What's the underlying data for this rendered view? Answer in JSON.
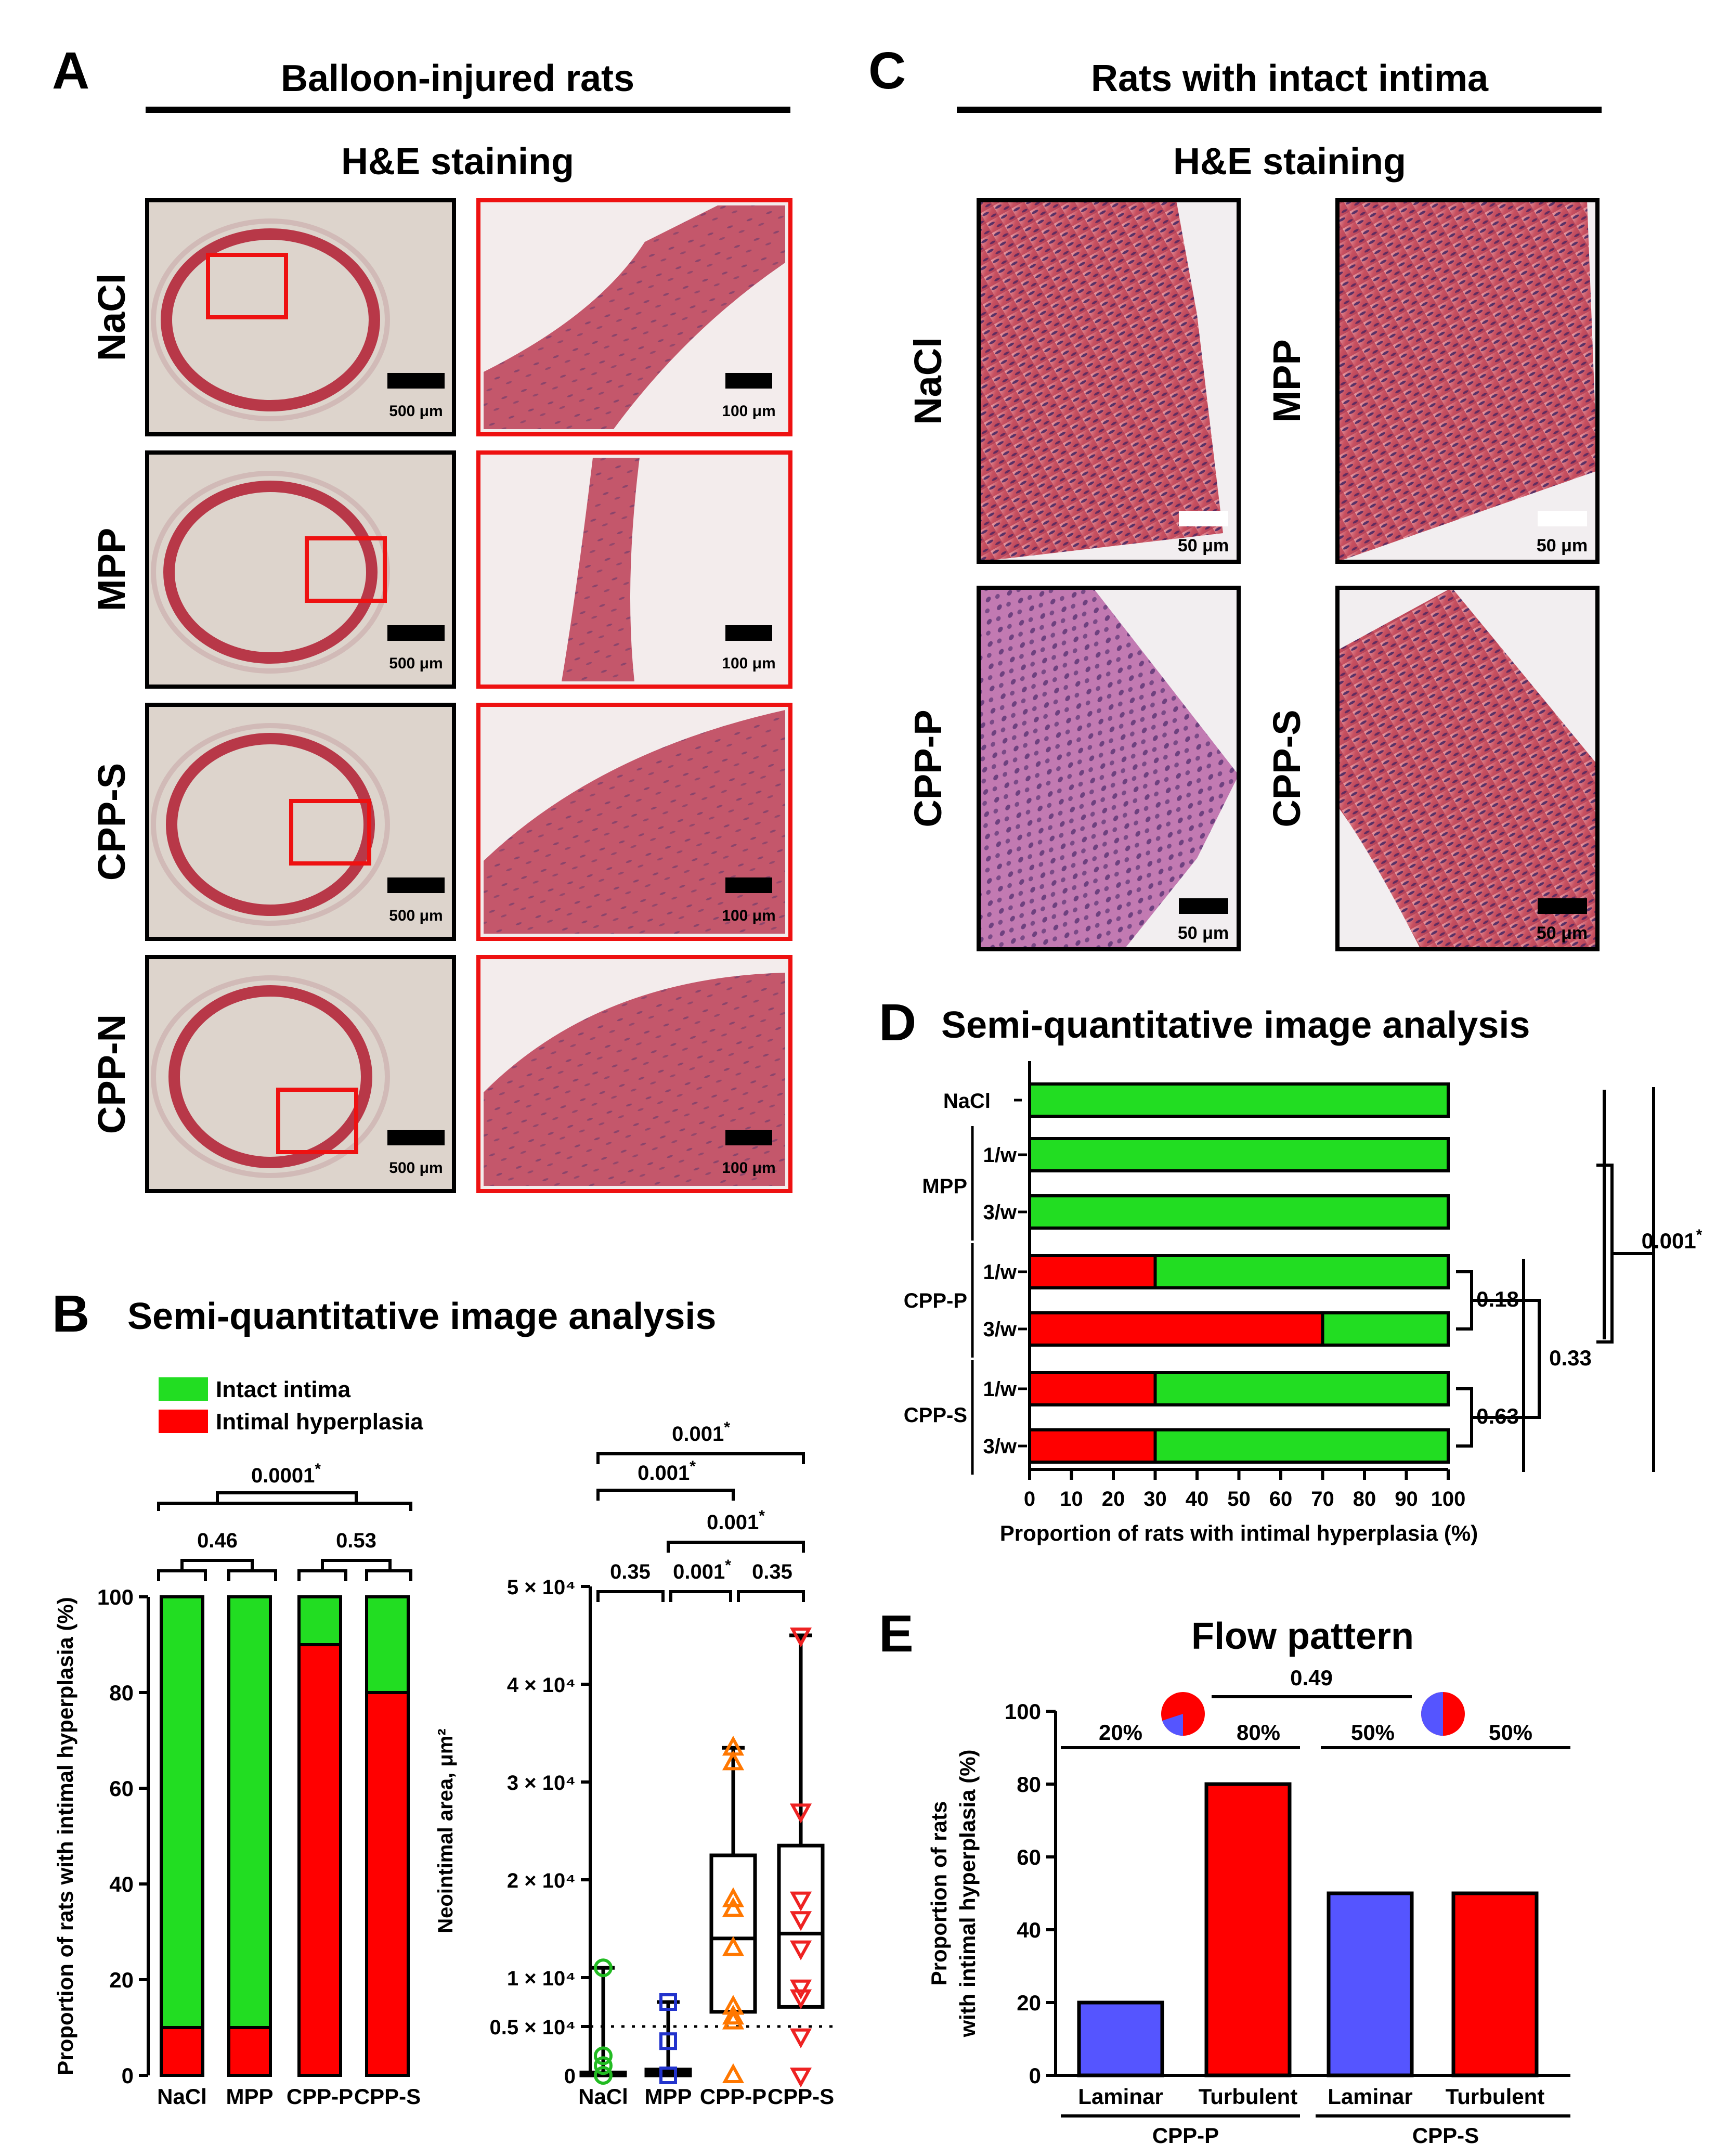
{
  "panels": {
    "A": {
      "letter": "A",
      "title": "Balloon-injured rats",
      "subtitle": "H&E staining",
      "rows": [
        {
          "label": "NaCl",
          "scale_left": "500 μm",
          "scale_right": "100 μm"
        },
        {
          "label": "MPP",
          "scale_left": "500 μm",
          "scale_right": "100 μm"
        },
        {
          "label": "CPP-S",
          "scale_left": "500 μm",
          "scale_right": "100 μm"
        },
        {
          "label": "CPP-N",
          "scale_left": "500 μm",
          "scale_right": "100 μm"
        }
      ]
    },
    "C": {
      "letter": "C",
      "title": "Rats with intact intima",
      "subtitle": "H&E staining",
      "images": [
        {
          "label": "NaCl",
          "scale": "50 μm"
        },
        {
          "label": "MPP",
          "scale": "50 μm"
        },
        {
          "label": "CPP-P",
          "scale": "50 μm"
        },
        {
          "label": "CPP-S",
          "scale": "50 μm"
        }
      ]
    },
    "B": {
      "letter": "B",
      "title": "Semi-quantitative image analysis",
      "legend": [
        {
          "label": "Intact intima",
          "color": "#22dd22"
        },
        {
          "label": "Intimal hyperplasia",
          "color": "#ff0000"
        }
      ],
      "left_pvalues": [
        "0.0001",
        "0.46",
        "0.53"
      ],
      "right_pvalues": [
        "0.001",
        "0.001",
        "0.001",
        "0.35",
        "0.001",
        "0.35"
      ],
      "asterisk": "*"
    },
    "D": {
      "letter": "D",
      "title": "Semi-quantitative image analysis",
      "group_labels": [
        "NaCl",
        "MPP",
        "CPP-P",
        "CPP-S"
      ],
      "freq_labels": [
        "1/w",
        "3/w",
        "1/w",
        "3/w",
        "1/w",
        "3/w"
      ],
      "pvalues": [
        "0.18",
        "0.63",
        "0.33",
        "0.001"
      ],
      "asterisk": "*"
    },
    "E": {
      "letter": "E",
      "title": "Flow pattern",
      "pie_pvalue": "0.49",
      "pie_percents": [
        "20%",
        "80%",
        "50%",
        "50%"
      ],
      "group_labels": [
        "CPP-P",
        "CPP-S"
      ]
    }
  },
  "chart_data": [
    {
      "panel": "B-left",
      "type": "bar",
      "stacked": true,
      "categories": [
        "NaCl",
        "MPP",
        "CPP-P",
        "CPP-S"
      ],
      "series": [
        {
          "name": "Intimal hyperplasia",
          "color": "#ff0000",
          "values": [
            10,
            10,
            90,
            80
          ]
        },
        {
          "name": "Intact intima",
          "color": "#22dd22",
          "values": [
            90,
            90,
            10,
            20
          ]
        }
      ],
      "ylabel": "Proportion of rats with intimal hyperplasia (%)",
      "ylim": [
        0,
        100
      ],
      "yticks": [
        0,
        20,
        40,
        60,
        80,
        100
      ]
    },
    {
      "panel": "B-right",
      "type": "box",
      "categories": [
        "NaCl",
        "MPP",
        "CPP-P",
        "CPP-S"
      ],
      "colors": [
        "#22bb22",
        "#2233cc",
        "#ff7700",
        "#ee2222"
      ],
      "ylabel": "Neointimal area, μm²",
      "ylim": [
        0,
        50000
      ],
      "ytick_labels": [
        "0",
        "0.5 × 10⁴",
        "1 × 10⁴",
        "2 × 10⁴",
        "3 × 10⁴",
        "4 × 10⁴",
        "5 × 10⁴"
      ],
      "ytick_values": [
        0,
        5000,
        10000,
        20000,
        30000,
        40000,
        50000
      ],
      "threshold": 5000,
      "boxes": [
        {
          "min": 0,
          "q1": 0,
          "median": 200,
          "q3": 300,
          "max": 11000
        },
        {
          "min": 0,
          "q1": 0,
          "median": 300,
          "q3": 600,
          "max": 7500
        },
        {
          "min": 0,
          "q1": 6500,
          "median": 14000,
          "q3": 22500,
          "max": 33500
        },
        {
          "min": 0,
          "q1": 7000,
          "median": 14500,
          "q3": 23500,
          "max": 45000
        }
      ],
      "points": [
        [
          0,
          1000,
          2000,
          11000
        ],
        [
          0,
          3500,
          7500
        ],
        [
          0,
          5500,
          6000,
          7000,
          13000,
          17000,
          18000,
          32000,
          33500
        ],
        [
          0,
          4000,
          8000,
          9000,
          13000,
          16000,
          18000,
          27000,
          45000
        ]
      ]
    },
    {
      "panel": "D",
      "type": "bar",
      "orientation": "horizontal",
      "stacked": true,
      "categories": [
        "NaCl",
        "MPP 1/w",
        "MPP 3/w",
        "CPP-P 1/w",
        "CPP-P 3/w",
        "CPP-S 1/w",
        "CPP-S 3/w"
      ],
      "series": [
        {
          "name": "Intimal hyperplasia",
          "color": "#ff0000",
          "values": [
            0,
            0,
            0,
            30,
            70,
            30,
            30
          ]
        },
        {
          "name": "Intact intima",
          "color": "#22dd22",
          "values": [
            100,
            100,
            100,
            70,
            30,
            70,
            70
          ]
        }
      ],
      "xlabel": "Proportion of rats with intimal hyperplasia (%)",
      "xlim": [
        0,
        100
      ],
      "xticks": [
        0,
        10,
        20,
        30,
        40,
        50,
        60,
        70,
        80,
        90,
        100
      ]
    },
    {
      "panel": "E",
      "type": "bar",
      "categories": [
        "Laminar",
        "Turbulent",
        "Laminar",
        "Turbulent"
      ],
      "groups": [
        "CPP-P",
        "CPP-P",
        "CPP-S",
        "CPP-S"
      ],
      "values": [
        20,
        80,
        50,
        50
      ],
      "colors": [
        "#5555ff",
        "#ff0000",
        "#5555ff",
        "#ff0000"
      ],
      "ylabel": "Proportion of rats with intimal hyperplasia (%)",
      "ylim": [
        0,
        100
      ],
      "yticks": [
        0,
        20,
        40,
        60,
        80,
        100
      ],
      "pies": [
        {
          "laminar": 20,
          "turbulent": 80
        },
        {
          "laminar": 50,
          "turbulent": 50
        }
      ]
    }
  ],
  "ylabel_E_lines": [
    "Proportion of rats",
    "with intimal hyperplasia (%)"
  ]
}
